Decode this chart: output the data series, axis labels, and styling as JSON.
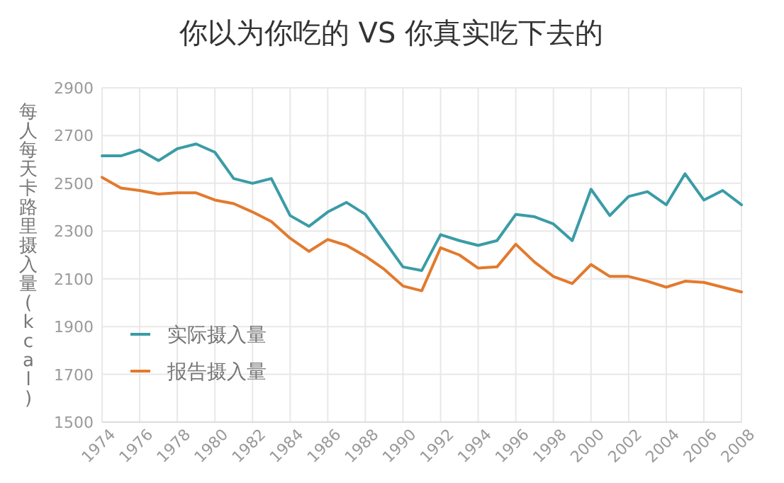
{
  "chart_data": {
    "type": "line",
    "title": "你以为你吃的 VS 你真实吃下去的",
    "ylabel": "每人每天卡路里摄入量(kcal)",
    "x": [
      1974,
      1975,
      1976,
      1977,
      1978,
      1979,
      1980,
      1981,
      1982,
      1983,
      1984,
      1985,
      1986,
      1987,
      1988,
      1989,
      1990,
      1991,
      1992,
      1993,
      1994,
      1995,
      1996,
      1997,
      1998,
      1999,
      2000,
      2001,
      2002,
      2003,
      2004,
      2005,
      2006,
      2007,
      2008
    ],
    "series": [
      {
        "name": "实际摄入量",
        "color": "#3a9ca6",
        "values": [
          2615,
          2615,
          2640,
          2595,
          2645,
          2665,
          2630,
          2520,
          2500,
          2520,
          2365,
          2320,
          2380,
          2420,
          2370,
          2260,
          2150,
          2135,
          2285,
          2260,
          2240,
          2260,
          2370,
          2360,
          2330,
          2260,
          2475,
          2365,
          2445,
          2465,
          2410,
          2540,
          2430,
          2470,
          2410
        ]
      },
      {
        "name": "报告摄入量",
        "color": "#e27a2e",
        "values": [
          2525,
          2480,
          2470,
          2455,
          2460,
          2460,
          2430,
          2415,
          2380,
          2340,
          2270,
          2215,
          2265,
          2240,
          2195,
          2140,
          2070,
          2050,
          2230,
          2200,
          2145,
          2150,
          2245,
          2170,
          2110,
          2080,
          2160,
          2110,
          2110,
          2090,
          2065,
          2090,
          2085,
          2065,
          2045
        ]
      }
    ],
    "xlim": [
      1974,
      2008
    ],
    "xticks": [
      1974,
      1976,
      1978,
      1980,
      1982,
      1984,
      1986,
      1988,
      1990,
      1992,
      1994,
      1996,
      1998,
      2000,
      2002,
      2004,
      2006,
      2008
    ],
    "ylim": [
      1500,
      2900
    ],
    "yticks": [
      1500,
      1700,
      1900,
      2100,
      2300,
      2500,
      2700,
      2900
    ],
    "grid": true,
    "legend": "bottom left",
    "marker": "none",
    "line_style": "solid"
  }
}
